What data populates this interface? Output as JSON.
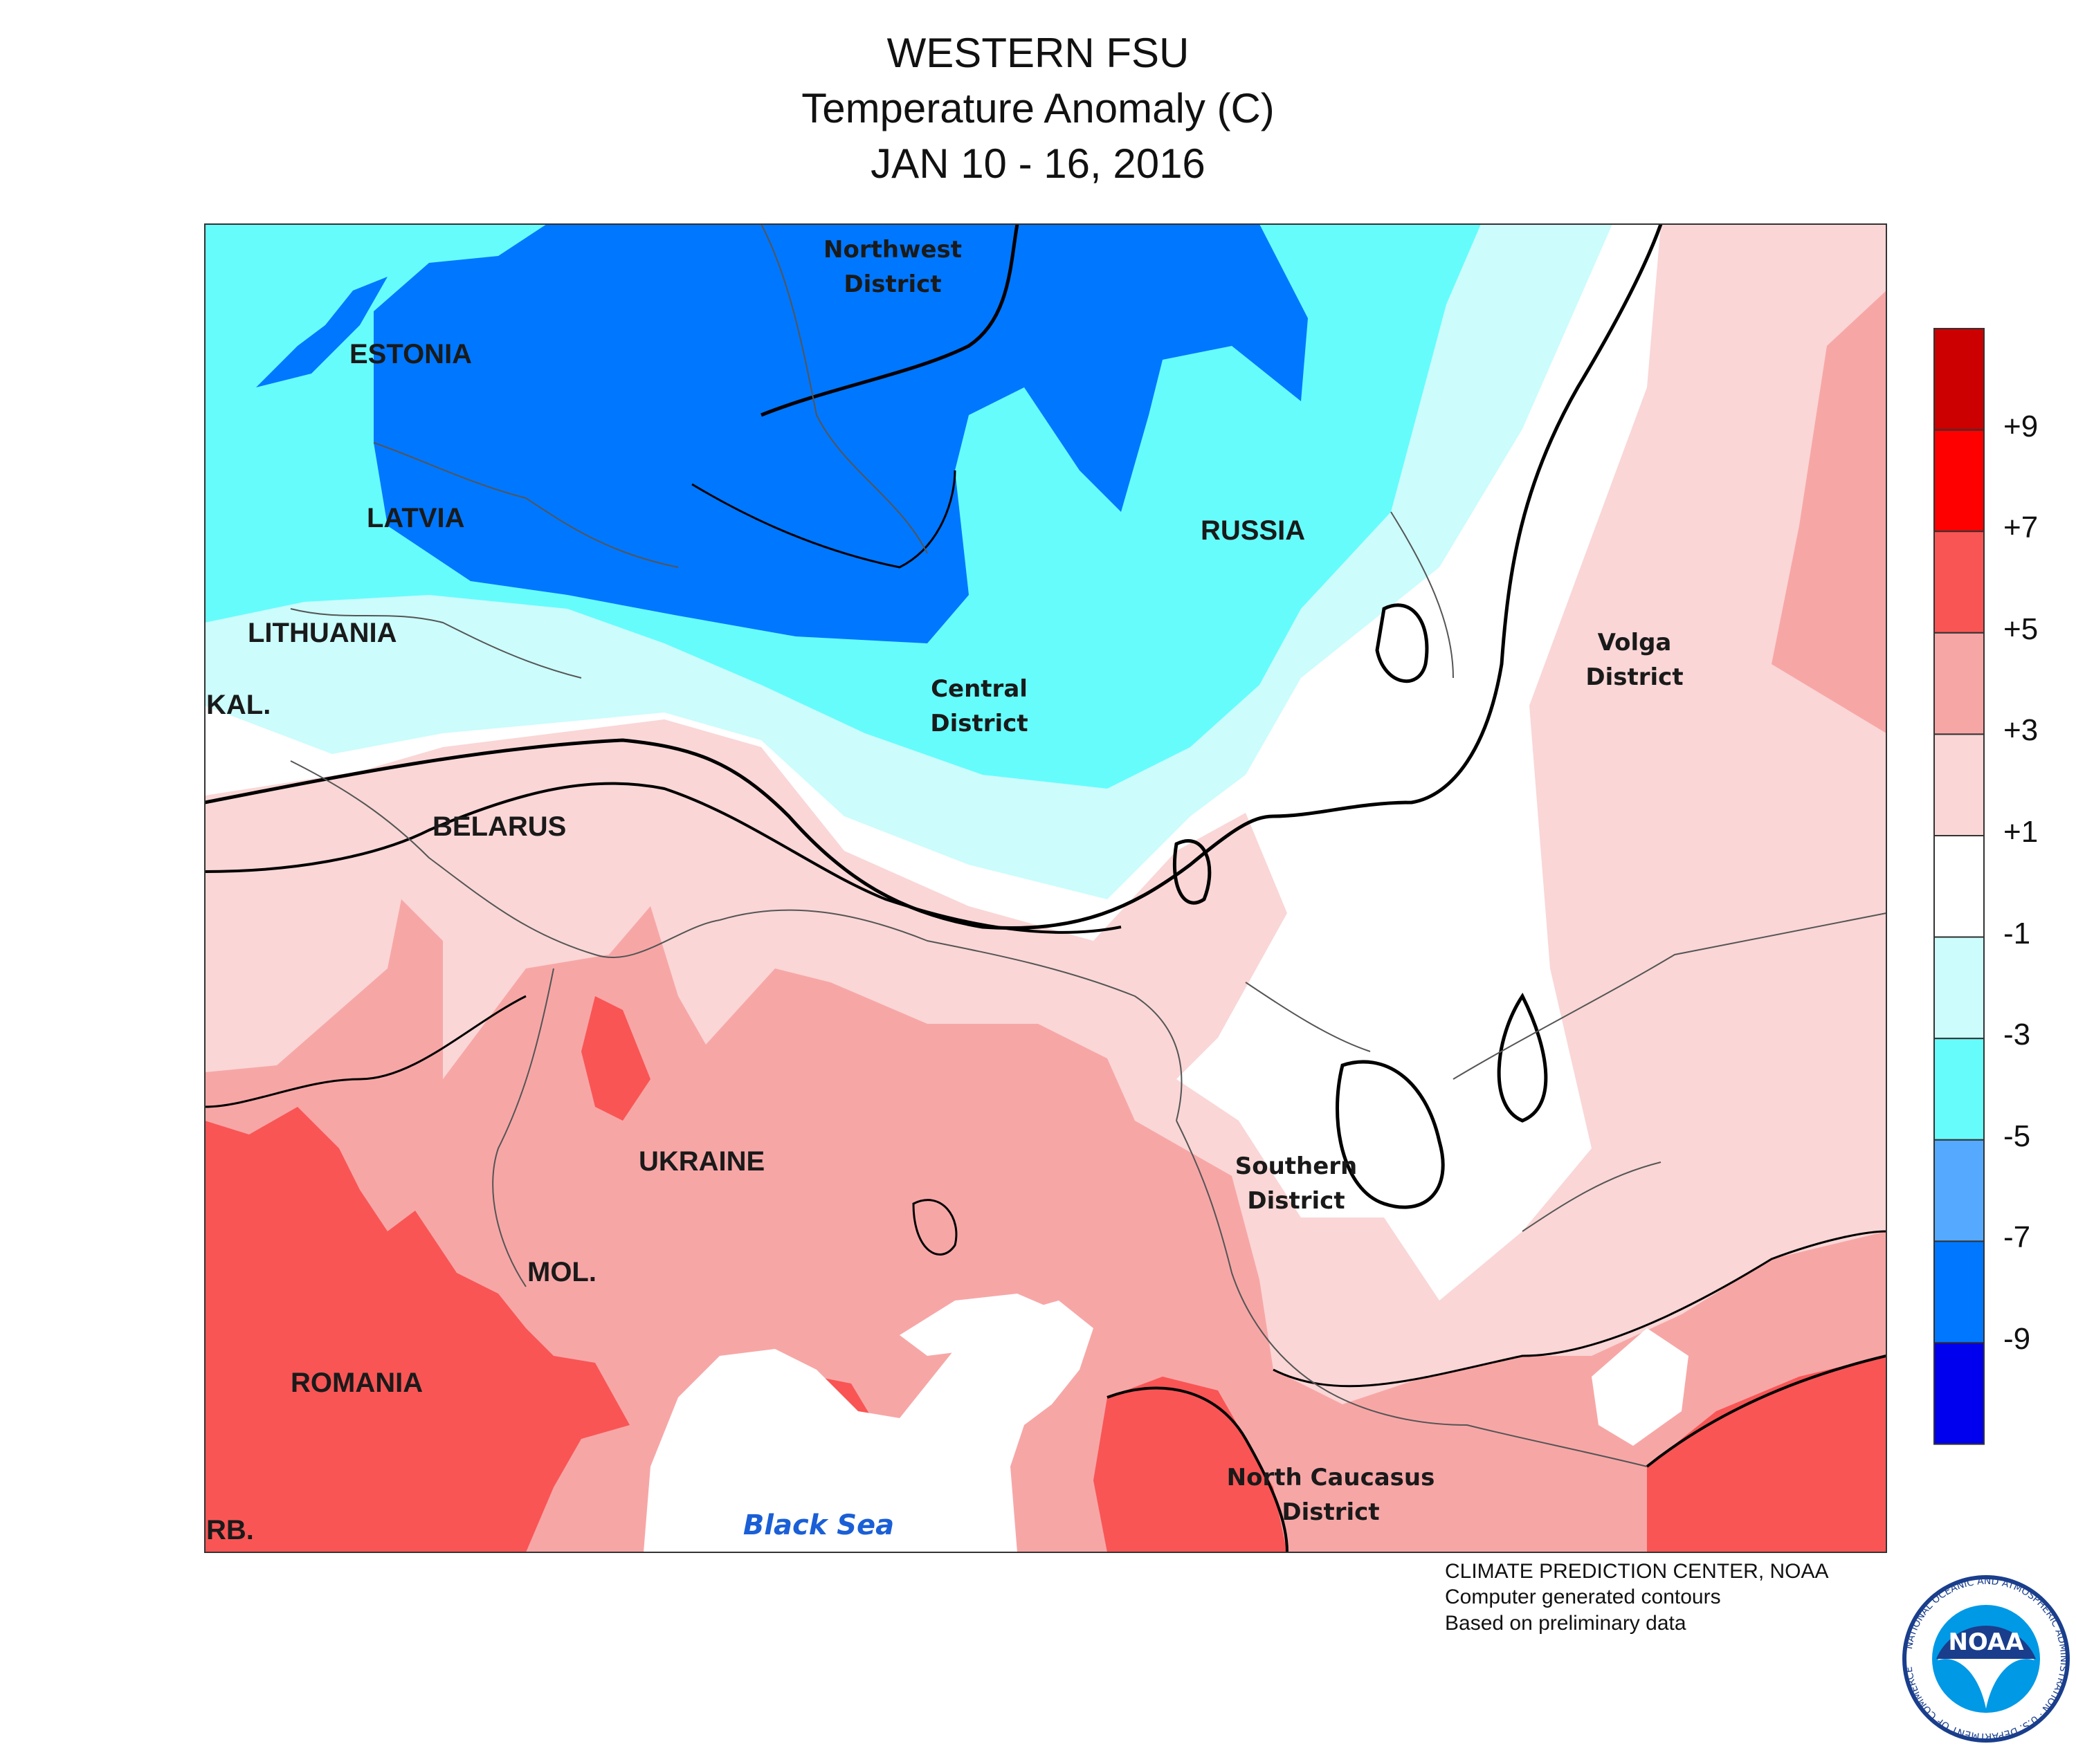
{
  "title": {
    "line1": "WESTERN FSU",
    "line2": "Temperature Anomaly (C)",
    "line3": "JAN 10 - 16, 2016"
  },
  "map_labels": {
    "countries": [
      "ESTONIA",
      "LATVIA",
      "LITHUANIA",
      "KAL.",
      "BELARUS",
      "RUSSIA",
      "UKRAINE",
      "MOL.",
      "ROMANIA",
      "RB."
    ],
    "districts": {
      "northwest": [
        "Northwest",
        "District"
      ],
      "central": [
        "Central",
        "District"
      ],
      "volga": [
        "Volga",
        "District"
      ],
      "southern": [
        "Southern",
        "District"
      ],
      "north_caucasus": [
        "North Caucasus",
        "District"
      ]
    },
    "sea": "Black Sea"
  },
  "legend": {
    "unit": "C",
    "labels": [
      "+9",
      "+7",
      "+5",
      "+3",
      "+1",
      "-1",
      "-3",
      "-5",
      "-7",
      "-9"
    ],
    "colors": [
      "#cc0000",
      "#ff0000",
      "#f95555",
      "#f7a6a6",
      "#fad6d6",
      "#ffffff",
      "#ccfcfc",
      "#66fcfc",
      "#55aaff",
      "#0077ff",
      "#0000ee"
    ]
  },
  "credits": {
    "line1": "CLIMATE PREDICTION CENTER, NOAA",
    "line2": "Computer generated contours",
    "line3": "Based on preliminary data"
  },
  "logo": {
    "text": "NOAA",
    "ring_text": "NATIONAL OCEANIC AND ATMOSPHERIC ADMINISTRATION · U.S. DEPARTMENT OF COMMERCE"
  }
}
